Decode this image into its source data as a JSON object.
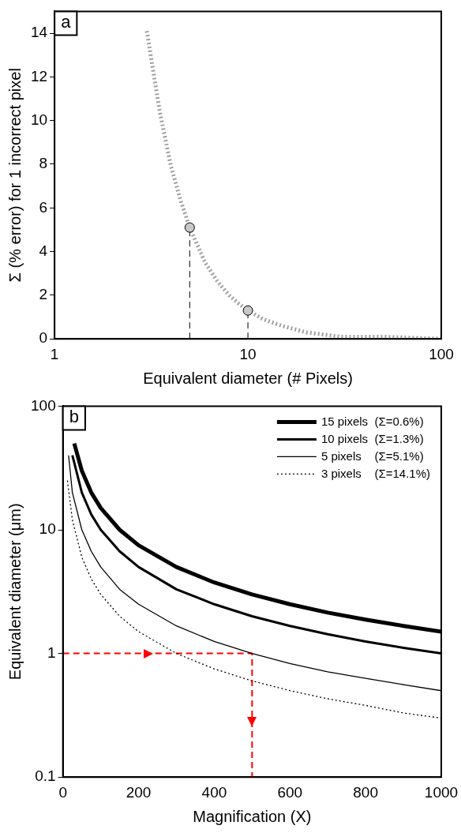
{
  "chart_data": [
    {
      "type": "line",
      "annotations": [
        "a"
      ],
      "xlabel": "Equivalent diameter (# Pixels)",
      "ylabel": "Σ (% error) for 1 incorrect pixel",
      "log": "x",
      "xlim": [
        1,
        100
      ],
      "xticks": [
        1,
        10,
        100
      ],
      "ylim": [
        0,
        15
      ],
      "yticks": [
        0,
        2,
        4,
        6,
        8,
        10,
        12,
        14
      ],
      "grid": false,
      "legend": false,
      "series": [
        {
          "color": "#a0a0a0",
          "line_style": "dotted",
          "marker": "none",
          "x": [
            3,
            3.5,
            4,
            4.5,
            5,
            6,
            7,
            8,
            9,
            10,
            12,
            15,
            20,
            30,
            50,
            100
          ],
          "values": [
            14.1,
            10.4,
            7.9,
            6.3,
            5.1,
            3.5,
            2.6,
            2.0,
            1.6,
            1.3,
            0.9,
            0.6,
            0.3,
            0.1,
            0.1,
            0.0
          ]
        },
        {
          "color": "#000000",
          "line_style": "dashed",
          "marker": "none",
          "x": [
            5,
            5
          ],
          "values": [
            0,
            5.1
          ]
        },
        {
          "color": "#000000",
          "line_style": "dashed",
          "marker": "none",
          "x": [
            10,
            10
          ],
          "values": [
            0,
            1.3
          ]
        },
        {
          "type": "scatter",
          "color": "#c8c8c8",
          "marker": "circle",
          "x": [
            5,
            10
          ],
          "values": [
            5.1,
            1.3
          ]
        }
      ]
    },
    {
      "type": "line",
      "annotations": [
        "b"
      ],
      "xlabel": "Magnification (X)",
      "ylabel": "Equivalent diameter (μm)",
      "log": "y",
      "xlim": [
        0,
        1000
      ],
      "xticks": [
        0,
        200,
        400,
        600,
        800,
        1000
      ],
      "ylim": [
        0.1,
        100
      ],
      "yticks": [
        0.1,
        1,
        10,
        100
      ],
      "grid": false,
      "legend": "top right",
      "series": [
        {
          "name": "15 pixels  (Σ=0.6%)",
          "color": "#000000",
          "line_style": "solid",
          "x": [
            30,
            50,
            75,
            100,
            150,
            200,
            300,
            400,
            500,
            600,
            700,
            800,
            900,
            1000
          ],
          "values": [
            50,
            30,
            20,
            15,
            10,
            7.5,
            5,
            3.75,
            3,
            2.5,
            2.14,
            1.88,
            1.67,
            1.5
          ]
        },
        {
          "name": "10 pixels  (Σ=1.3%)",
          "color": "#000000",
          "line_style": "solid",
          "x": [
            25,
            50,
            75,
            100,
            150,
            200,
            300,
            400,
            500,
            600,
            700,
            800,
            900,
            1000
          ],
          "values": [
            40,
            20,
            13.3,
            10,
            6.7,
            5,
            3.3,
            2.5,
            2,
            1.67,
            1.43,
            1.25,
            1.11,
            1
          ]
        },
        {
          "name": "5 pixels    (Σ=5.1%)",
          "color": "#000000",
          "line_style": "solid",
          "x": [
            15,
            25,
            50,
            75,
            100,
            150,
            200,
            300,
            400,
            500,
            600,
            700,
            800,
            900,
            1000
          ],
          "values": [
            40,
            20,
            10,
            6.7,
            5,
            3.3,
            2.5,
            1.67,
            1.25,
            1,
            0.83,
            0.71,
            0.63,
            0.56,
            0.5
          ]
        },
        {
          "name": "3 pixels    (Σ=14.1%)",
          "color": "#000000",
          "line_style": "dotted",
          "x": [
            12,
            25,
            50,
            75,
            100,
            150,
            200,
            300,
            400,
            500,
            600,
            700,
            800,
            900,
            1000
          ],
          "values": [
            25,
            12,
            6,
            4,
            3,
            2,
            1.5,
            1,
            0.75,
            0.6,
            0.5,
            0.43,
            0.38,
            0.33,
            0.3
          ]
        },
        {
          "color": "#ff0000",
          "line_style": "dashed",
          "x": [
            0,
            500,
            500
          ],
          "values": [
            1,
            1,
            0.1
          ]
        }
      ]
    }
  ]
}
